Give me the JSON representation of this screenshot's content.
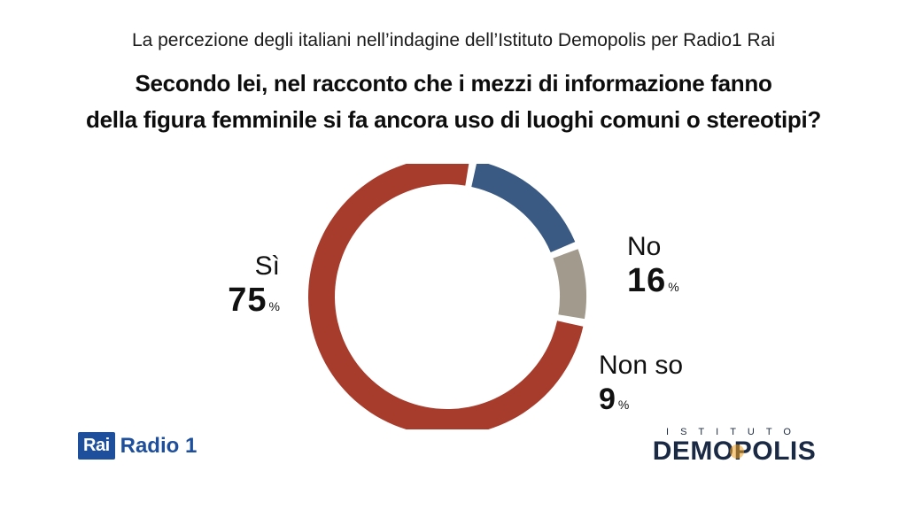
{
  "header": {
    "subtitle": "La percezione degli italiani nell’indagine dell’Istituto Demopolis per Radio1 Rai",
    "question_line1": "Secondo lei, nel racconto che i mezzi di informazione fanno",
    "question_line2": "della figura femminile si fa ancora uso di luoghi comuni o stereotipi?"
  },
  "chart_data": {
    "type": "pie",
    "donut": true,
    "slices": [
      {
        "label": "Sì",
        "value": 75,
        "display": "75",
        "color": "#a83c2c"
      },
      {
        "label": "No",
        "value": 16,
        "display": "16",
        "color": "#3a5a83"
      },
      {
        "label": "Non so",
        "value": 9,
        "display": "9",
        "color": "#a29a8c"
      }
    ],
    "unit": "%"
  },
  "logos": {
    "rai_box": "Rai",
    "rai_radio": "Radio 1",
    "demo_top": "ISTITUTO",
    "demo_main": "DEMOPOLIS"
  }
}
